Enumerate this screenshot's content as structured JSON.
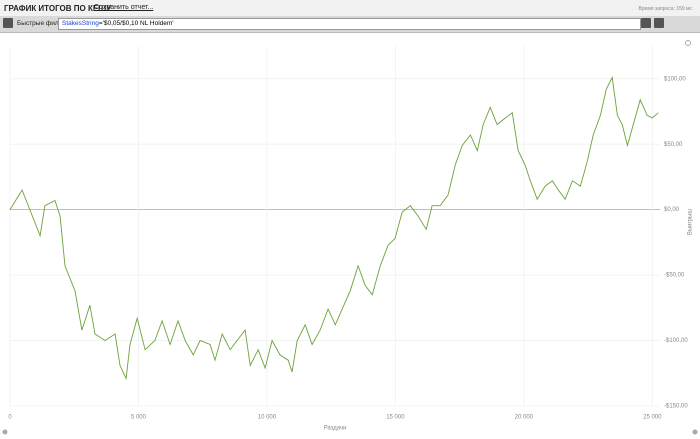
{
  "header": {
    "title": "ГРАФИК ИТОГОВ ПО КЕШУ",
    "save_link": "Сохранить отчет...",
    "query_time": "Время запроса: 159 мс"
  },
  "filter": {
    "label": "Быстрые фильтры",
    "field": "StakesString",
    "expression": "='$0,05/$0,10 NL Holdem'"
  },
  "chart_data": {
    "type": "line",
    "xlabel": "Раздачи",
    "ylabel": "Выигрыш",
    "color": "#6aa23a",
    "grid": true,
    "x": [
      0,
      470,
      1170,
      1360,
      1750,
      1950,
      2140,
      2530,
      2800,
      3110,
      3310,
      3700,
      4090,
      4280,
      4520,
      4670,
      4950,
      5260,
      5640,
      5920,
      6230,
      6540,
      6820,
      7130,
      7400,
      7790,
      7980,
      8260,
      8570,
      8840,
      9150,
      9350,
      9660,
      9930,
      10200,
      10510,
      10830,
      10980,
      11180,
      11490,
      11760,
      12070,
      12380,
      12660,
      12930,
      13240,
      13550,
      13830,
      14100,
      14410,
      14720,
      14990,
      15260,
      15580,
      15890,
      16200,
      16430,
      16740,
      17050,
      17330,
      17600,
      17920,
      18190,
      18420,
      18690,
      18960,
      19280,
      19550,
      19780,
      20050,
      20250,
      20520,
      20830,
      21110,
      21340,
      21610,
      21890,
      22200,
      22470,
      22700,
      22980,
      23210,
      23440,
      23640,
      23830,
      24030,
      24260,
      24530,
      24800,
      25000,
      25230
    ],
    "values": [
      0,
      15,
      -20,
      3,
      7,
      -5,
      -43,
      -62,
      -92,
      -73,
      -95,
      -100,
      -95,
      -119,
      -129,
      -103,
      -83,
      -107,
      -100,
      -85,
      -103,
      -85,
      -100,
      -111,
      -100,
      -103,
      -115,
      -95,
      -107,
      -100,
      -92,
      -119,
      -107,
      -121,
      -100,
      -111,
      -115,
      -124,
      -100,
      -88,
      -103,
      -92,
      -76,
      -88,
      -76,
      -62,
      -43,
      -58,
      -65,
      -43,
      -27,
      -22,
      -2,
      3,
      -5,
      -15,
      3,
      3,
      11,
      34,
      49,
      57,
      45,
      65,
      78,
      65,
      70,
      74,
      45,
      34,
      22,
      8,
      18,
      22,
      15,
      8,
      22,
      18,
      37,
      57,
      72,
      92,
      101,
      72,
      65,
      49,
      65,
      84,
      72,
      70,
      74
    ],
    "xlim": [
      0,
      25300
    ],
    "ylim": [
      -150,
      125
    ],
    "xticks": [
      0,
      {
        "value": 5000,
        "label": "5 000"
      },
      {
        "value": 10000,
        "label": "10 000"
      },
      {
        "value": 15000,
        "label": "15 000"
      },
      {
        "value": 20000,
        "label": "20 000"
      },
      {
        "value": 25000,
        "label": "25 000"
      }
    ],
    "yticks": [
      {
        "value": -150,
        "label": "-$150,00"
      },
      {
        "value": -100,
        "label": "-$100,00"
      },
      {
        "value": -50,
        "label": "-$50,00"
      },
      {
        "value": 0,
        "label": "$0,00"
      },
      {
        "value": 50,
        "label": "$50,00"
      },
      {
        "value": 100,
        "label": "$100,00"
      }
    ]
  }
}
